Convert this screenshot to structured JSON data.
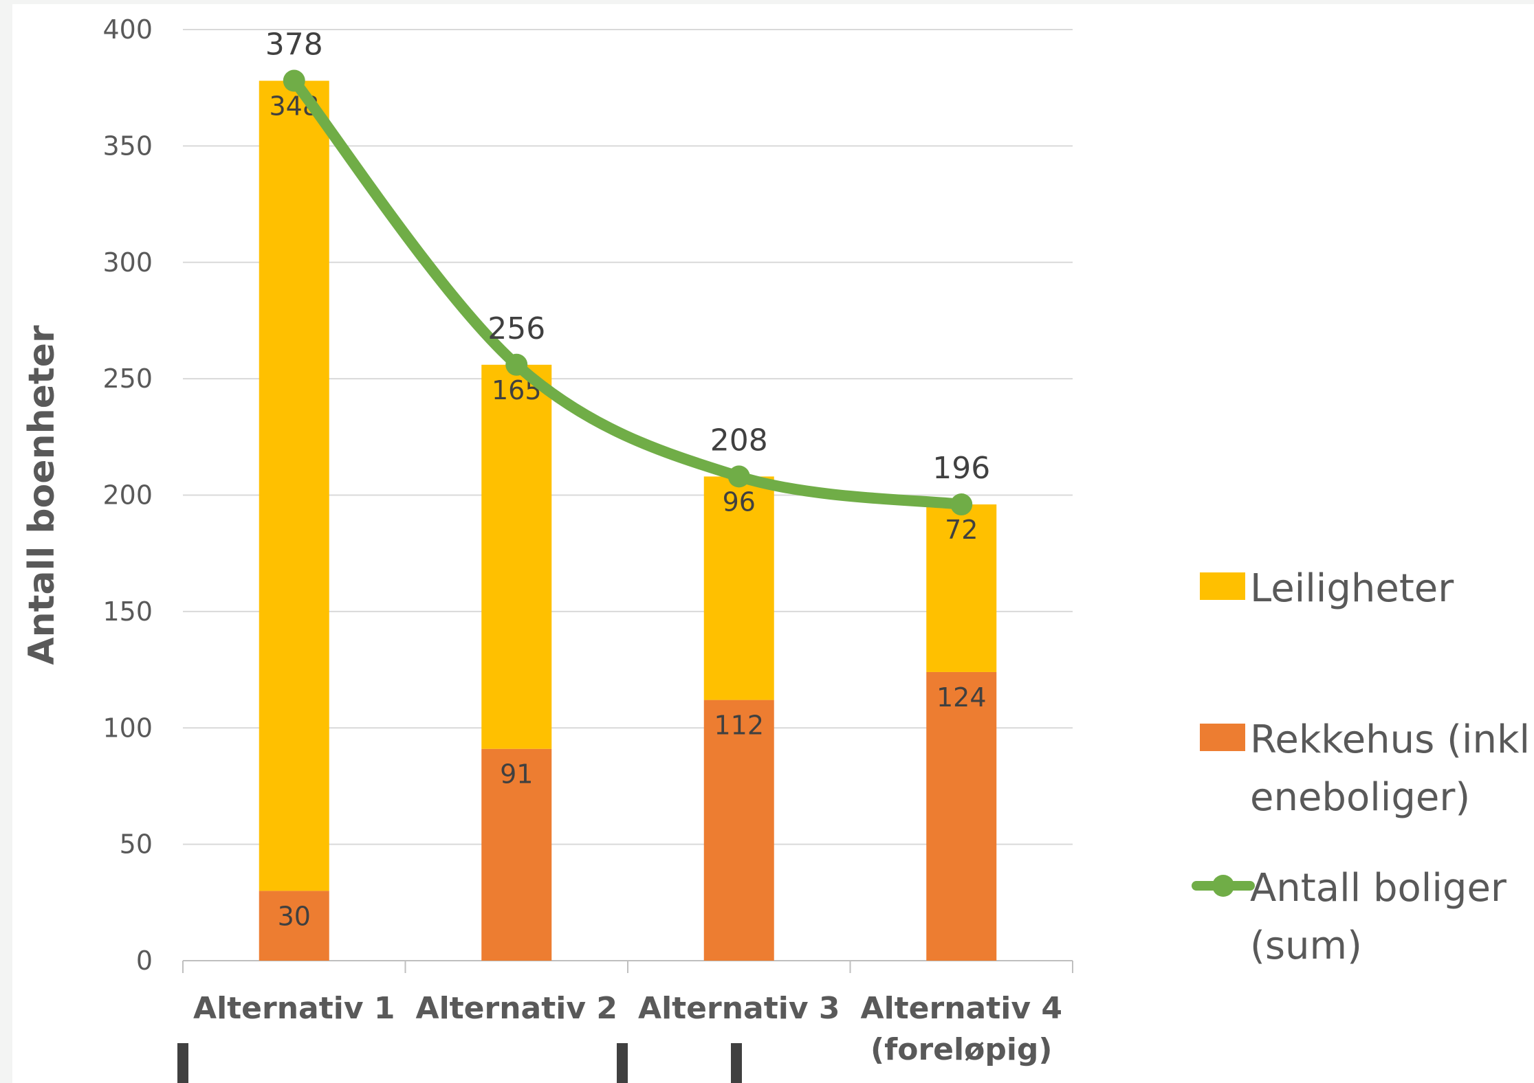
{
  "chart_data": {
    "type": "bar",
    "stacked": true,
    "title": "",
    "ylabel": "Antall boenheter",
    "xlabel": "",
    "ylim": [
      0,
      400
    ],
    "yticks": [
      0,
      50,
      100,
      150,
      200,
      250,
      300,
      350,
      400
    ],
    "grid": true,
    "legend_position": "right",
    "categories": [
      [
        "Alternativ 1"
      ],
      [
        "Alternativ 2"
      ],
      [
        "Alternativ 3"
      ],
      [
        "Alternativ 4",
        "(foreløpig)"
      ]
    ],
    "series": [
      {
        "name": "Rekkehus (inkl. eneboliger)",
        "name_lines": [
          "Rekkehus (inkl.",
          "eneboliger)"
        ],
        "kind": "bar",
        "color": "#ED7D31",
        "values": [
          30,
          91,
          112,
          124
        ]
      },
      {
        "name": "Leiligheter",
        "name_lines": [
          "Leiligheter"
        ],
        "kind": "bar",
        "color": "#FFC000",
        "values": [
          348,
          165,
          96,
          72
        ]
      },
      {
        "name": "Antall boliger (sum)",
        "name_lines": [
          "Antall boliger",
          "(sum)"
        ],
        "kind": "line",
        "smooth": true,
        "color": "#70AD47",
        "values": [
          378,
          256,
          208,
          196
        ]
      }
    ]
  }
}
